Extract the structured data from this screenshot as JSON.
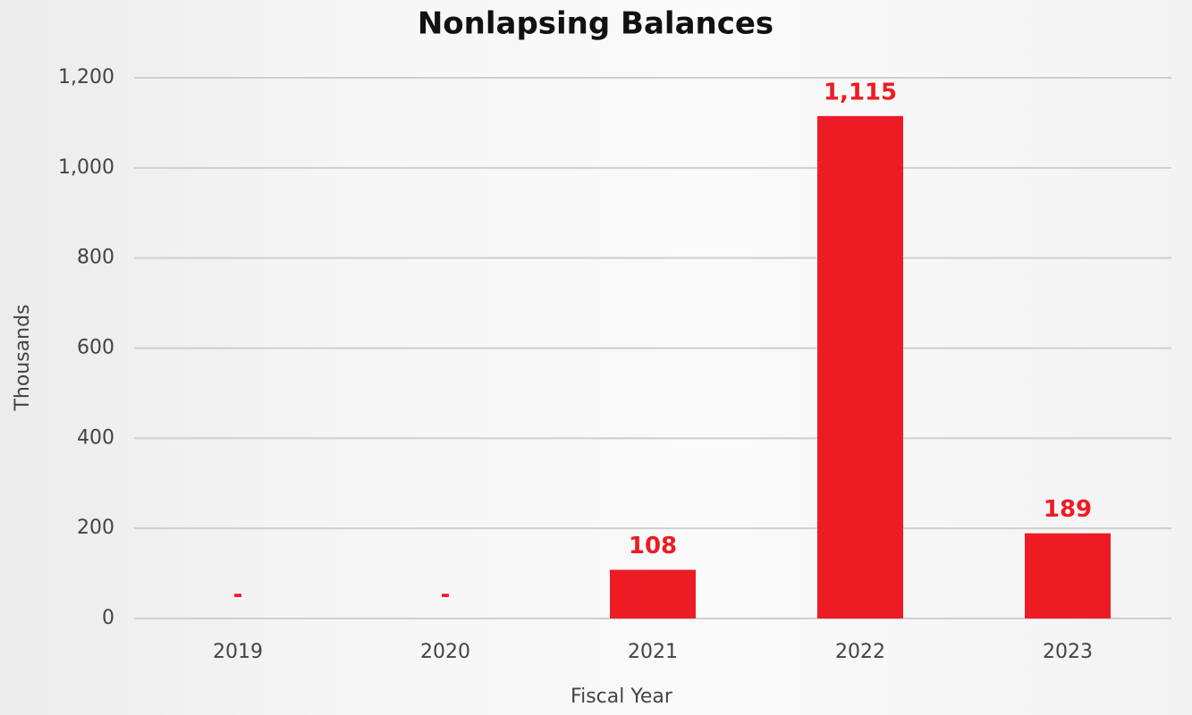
{
  "chart_data": {
    "type": "bar",
    "title": "Nonlapsing Balances",
    "x_label": "Fiscal Year",
    "y_label": "Thousands",
    "categories": [
      "2019",
      "2020",
      "2021",
      "2022",
      "2023"
    ],
    "values": [
      0,
      0,
      108,
      1115,
      189
    ],
    "value_labels": [
      "-",
      "-",
      "108",
      "1,115",
      "189"
    ],
    "color": "#ed1c24",
    "ylim": [
      0,
      1200
    ],
    "yticks": [
      0,
      200,
      400,
      600,
      800,
      {
        "value": 1000,
        "label": "1,000"
      },
      {
        "value": 1200,
        "label": "1,200"
      }
    ],
    "grid": true
  }
}
